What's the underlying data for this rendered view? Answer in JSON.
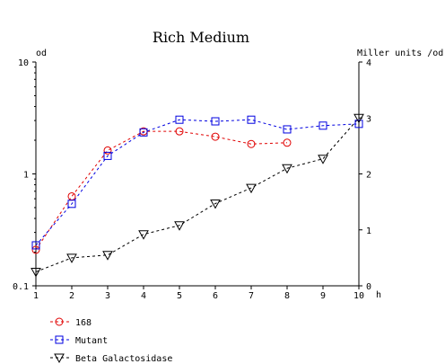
{
  "chart_data": {
    "type": "line",
    "title": "Rich Medium",
    "left_axis_unit": "od",
    "right_axis_unit": "Miller units /od",
    "x_unit": "h",
    "x": [
      1,
      2,
      3,
      4,
      5,
      6,
      7,
      8,
      9,
      10
    ],
    "x_tick_labels": [
      "1",
      "2",
      "3",
      "4",
      "5",
      "6",
      "7",
      "8",
      "9",
      "10"
    ],
    "left_axis": {
      "scale": "log",
      "range": [
        0.1,
        10
      ],
      "tick_labels": [
        "0.1",
        "1",
        "10"
      ]
    },
    "right_axis": {
      "scale": "linear",
      "range": [
        0,
        4
      ],
      "tick_labels": [
        "0",
        "1",
        "2",
        "3",
        "4"
      ]
    },
    "grid": false,
    "legend_position": "bottom-left",
    "series": [
      {
        "name": "168",
        "axis": "left",
        "color": "#e00000",
        "marker": "circle",
        "x": [
          1,
          2,
          3,
          4,
          5,
          6,
          7,
          8
        ],
        "values": [
          0.21,
          0.63,
          1.62,
          2.4,
          2.4,
          2.15,
          1.85,
          1.9
        ]
      },
      {
        "name": "Mutant",
        "axis": "left",
        "color": "#0000e0",
        "marker": "square",
        "x": [
          1,
          2,
          3,
          4,
          5,
          6,
          7,
          8,
          9,
          10
        ],
        "values": [
          0.23,
          0.54,
          1.45,
          2.35,
          3.05,
          2.95,
          3.05,
          2.5,
          2.7,
          2.8
        ]
      },
      {
        "name": "Beta Galactosidase",
        "axis": "right",
        "color": "#000000",
        "marker": "triangle-down",
        "x": [
          1,
          2,
          3,
          4,
          5,
          6,
          7,
          8,
          9,
          10
        ],
        "values": [
          0.25,
          0.5,
          0.55,
          0.92,
          1.08,
          1.47,
          1.75,
          2.1,
          2.27,
          3.0
        ]
      }
    ]
  }
}
